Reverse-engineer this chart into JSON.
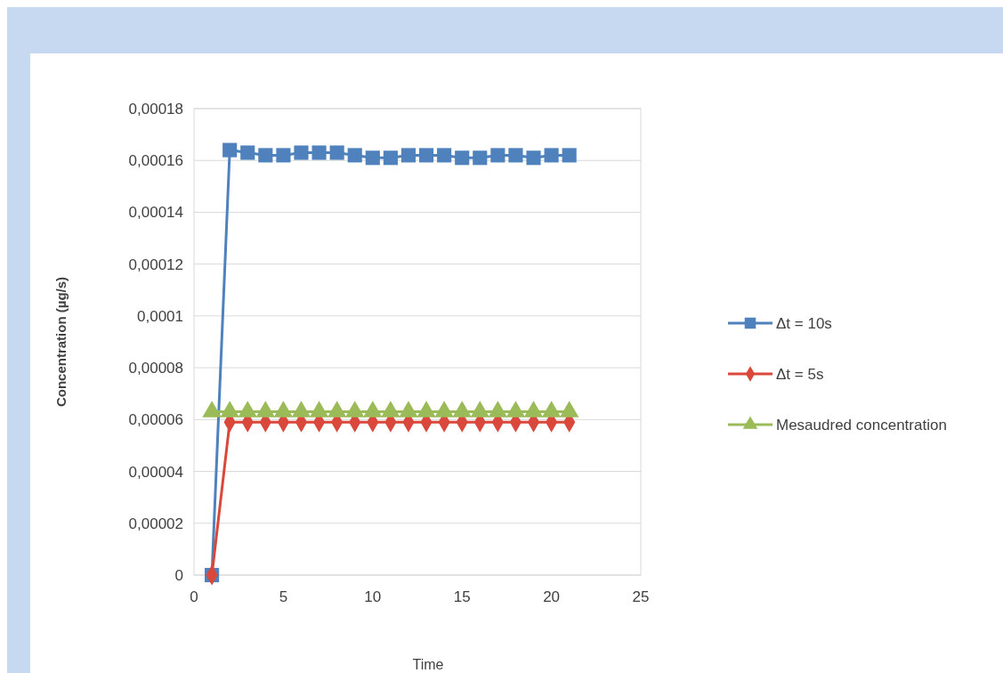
{
  "chart_data": {
    "type": "line",
    "xlabel": "Time",
    "ylabel": "Concentration (µg/s)",
    "x": [
      1,
      2,
      3,
      4,
      5,
      6,
      7,
      8,
      9,
      10,
      11,
      12,
      13,
      14,
      15,
      16,
      17,
      18,
      19,
      20,
      21
    ],
    "series": [
      {
        "name": "Δt = 10s",
        "color": "#4f81bd",
        "marker": "square",
        "values": [
          0,
          0.000164,
          0.000163,
          0.000162,
          0.000162,
          0.000163,
          0.000163,
          0.000163,
          0.000162,
          0.000161,
          0.000161,
          0.000162,
          0.000162,
          0.000162,
          0.000161,
          0.000161,
          0.000162,
          0.000162,
          0.000161,
          0.000162,
          0.000162
        ]
      },
      {
        "name": "Δt = 5s",
        "color": "#d9483b",
        "marker": "diamond",
        "values": [
          0,
          5.9e-05,
          5.9e-05,
          5.9e-05,
          5.9e-05,
          5.9e-05,
          5.9e-05,
          5.9e-05,
          5.9e-05,
          5.9e-05,
          5.9e-05,
          5.9e-05,
          5.9e-05,
          5.9e-05,
          5.9e-05,
          5.9e-05,
          5.9e-05,
          5.9e-05,
          5.9e-05,
          5.9e-05,
          5.9e-05
        ]
      },
      {
        "name": "Mesaudred concentration",
        "color": "#9bbb59",
        "marker": "triangle",
        "values": [
          6.3e-05,
          6.3e-05,
          6.3e-05,
          6.3e-05,
          6.3e-05,
          6.3e-05,
          6.3e-05,
          6.3e-05,
          6.3e-05,
          6.3e-05,
          6.3e-05,
          6.3e-05,
          6.3e-05,
          6.3e-05,
          6.3e-05,
          6.3e-05,
          6.3e-05,
          6.3e-05,
          6.3e-05,
          6.3e-05,
          6.3e-05
        ]
      }
    ],
    "xlim": [
      0,
      25
    ],
    "xticks": [
      0,
      5,
      10,
      15,
      20,
      25
    ],
    "ylim": [
      0,
      0.00018
    ],
    "yticks": [
      0,
      {
        "value": 2e-05,
        "label": "0,00002"
      },
      {
        "value": 4e-05,
        "label": "0,00004"
      },
      {
        "value": 6e-05,
        "label": "0,00006"
      },
      {
        "value": 8e-05,
        "label": "0,00008"
      },
      {
        "value": 0.0001,
        "label": "0,0001"
      },
      {
        "value": 0.00012,
        "label": "0,00012"
      },
      {
        "value": 0.00014,
        "label": "0,00014"
      },
      {
        "value": 0.00016,
        "label": "0,00016"
      },
      {
        "value": 0.00018,
        "label": "0,00018"
      }
    ],
    "grid": "y",
    "legend": "right",
    "line_style": "solid"
  }
}
